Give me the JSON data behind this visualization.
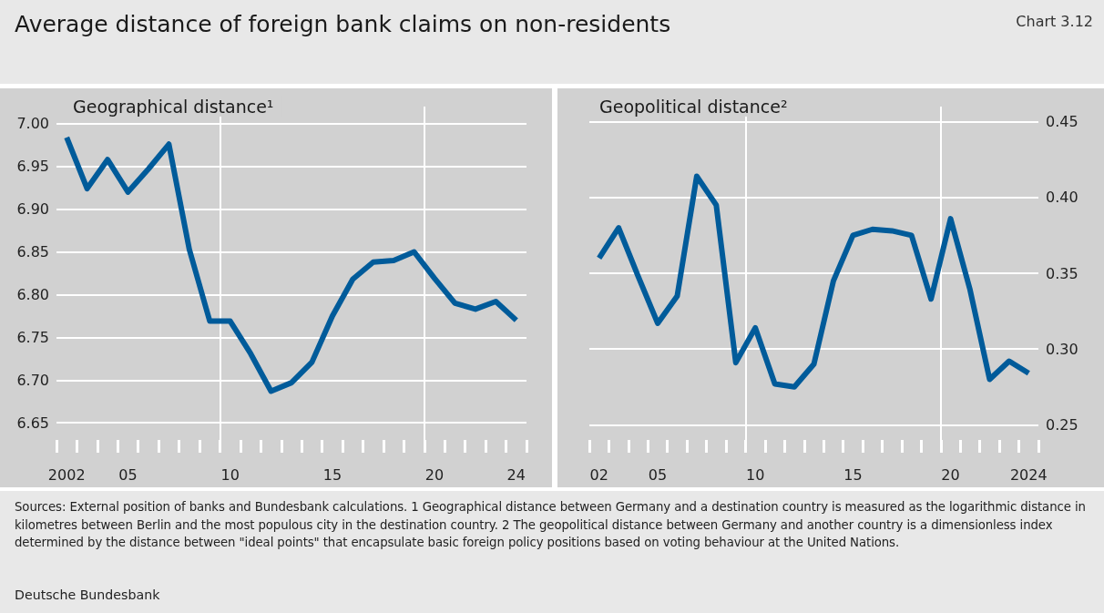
{
  "chart_data": [
    {
      "type": "other",
      "title": "Average distance of foreign bank claims on non-residents",
      "subtitle": "Chart 3.12",
      "annotations": [
        "Sources: External position of banks and Bundesbank calculations. 1 Geographical distance between Germany and a destination country is measured as the logarithmic distance in kilometres between Berlin and the most populous city in the destination country. 2 The geopolitical distance between Germany and another country is a dimensionless index determined by the distance between \"ideal points\" that encapsulate basic foreign policy positions based on voting behaviour at the United Nations.",
        "Deutsche Bundesbank"
      ]
    },
    {
      "type": "line",
      "title": "Geographical distance¹",
      "x": [
        2002,
        2003,
        2004,
        2005,
        2006,
        2007,
        2008,
        2009,
        2010,
        2011,
        2012,
        2013,
        2014,
        2015,
        2016,
        2017,
        2018,
        2019,
        2020,
        2021,
        2022,
        2023,
        2024
      ],
      "xlim": [
        2001.5,
        2024.5
      ],
      "xticks": [
        {
          "value": 2001.5,
          "label": null
        },
        {
          "value": 2002,
          "label": "2002"
        },
        {
          "value": 2002.5,
          "label": null
        },
        {
          "value": 2003.5,
          "label": null
        },
        {
          "value": 2004.5,
          "label": null
        },
        {
          "value": 2005,
          "label": "05"
        },
        {
          "value": 2005.5,
          "label": null
        },
        {
          "value": 2006.5,
          "label": null
        },
        {
          "value": 2007.5,
          "label": null
        },
        {
          "value": 2008.5,
          "label": null
        },
        {
          "value": 2009.5,
          "label": null
        },
        {
          "value": 2010,
          "label": "10"
        },
        {
          "value": 2010.5,
          "label": null
        },
        {
          "value": 2011.5,
          "label": null
        },
        {
          "value": 2012.5,
          "label": null
        },
        {
          "value": 2013.5,
          "label": null
        },
        {
          "value": 2014.5,
          "label": null
        },
        {
          "value": 2015,
          "label": "15"
        },
        {
          "value": 2015.5,
          "label": null
        },
        {
          "value": 2016.5,
          "label": null
        },
        {
          "value": 2017.5,
          "label": null
        },
        {
          "value": 2018.5,
          "label": null
        },
        {
          "value": 2019.5,
          "label": null
        },
        {
          "value": 2020,
          "label": "20"
        },
        {
          "value": 2020.5,
          "label": null
        },
        {
          "value": 2021.5,
          "label": null
        },
        {
          "value": 2022.5,
          "label": null
        },
        {
          "value": 2023.5,
          "label": null
        },
        {
          "value": 2024,
          "label": "24"
        },
        {
          "value": 2024.5,
          "label": null
        }
      ],
      "series": [
        {
          "color": "#005b9a",
          "values": [
            6.984,
            6.924,
            6.958,
            6.92,
            6.947,
            6.976,
            6.853,
            6.769,
            6.769,
            6.731,
            6.687,
            6.697,
            6.721,
            6.775,
            6.818,
            6.838,
            6.84,
            6.85,
            6.819,
            6.79,
            6.783,
            6.792,
            6.77
          ]
        }
      ],
      "ylim": [
        6.63,
        7.02
      ],
      "yticks": [
        6.65,
        {
          "value": 6.7,
          "label": "6.70"
        },
        6.75,
        {
          "value": 6.8,
          "label": "6.80"
        },
        6.85,
        {
          "value": 6.9,
          "label": "6.90"
        },
        6.95,
        {
          "value": 7,
          "label": "7.00"
        }
      ],
      "grid": "y",
      "ref_lines": [
        {
          "axis": "x",
          "value": 2009.5,
          "color": "#ffffff"
        },
        {
          "axis": "x",
          "value": 2019.5,
          "color": "#ffffff"
        }
      ]
    },
    {
      "type": "line",
      "title": "Geopolitical distance²",
      "x": [
        2002,
        2003,
        2004,
        2005,
        2006,
        2007,
        2008,
        2009,
        2010,
        2011,
        2012,
        2013,
        2014,
        2015,
        2016,
        2017,
        2018,
        2019,
        2020,
        2021,
        2022,
        2023,
        2024
      ],
      "xlim": [
        2001.5,
        2024.5
      ],
      "xticks": [
        {
          "value": 2001.5,
          "label": null
        },
        {
          "value": 2002,
          "label": "02"
        },
        {
          "value": 2002.5,
          "label": null
        },
        {
          "value": 2003.5,
          "label": null
        },
        {
          "value": 2004.5,
          "label": null
        },
        {
          "value": 2005,
          "label": "05"
        },
        {
          "value": 2005.5,
          "label": null
        },
        {
          "value": 2006.5,
          "label": null
        },
        {
          "value": 2007.5,
          "label": null
        },
        {
          "value": 2008.5,
          "label": null
        },
        {
          "value": 2009.5,
          "label": null
        },
        {
          "value": 2010,
          "label": "10"
        },
        {
          "value": 2010.5,
          "label": null
        },
        {
          "value": 2011.5,
          "label": null
        },
        {
          "value": 2012.5,
          "label": null
        },
        {
          "value": 2013.5,
          "label": null
        },
        {
          "value": 2014.5,
          "label": null
        },
        {
          "value": 2015,
          "label": "15"
        },
        {
          "value": 2015.5,
          "label": null
        },
        {
          "value": 2016.5,
          "label": null
        },
        {
          "value": 2017.5,
          "label": null
        },
        {
          "value": 2018.5,
          "label": null
        },
        {
          "value": 2019.5,
          "label": null
        },
        {
          "value": 2020,
          "label": "20"
        },
        {
          "value": 2020.5,
          "label": null
        },
        {
          "value": 2021.5,
          "label": null
        },
        {
          "value": 2022.5,
          "label": null
        },
        {
          "value": 2023.5,
          "label": null
        },
        {
          "value": 2024,
          "label": "2024"
        },
        {
          "value": 2024.5,
          "label": null
        }
      ],
      "series": [
        {
          "color": "#005b9a",
          "values": [
            0.36,
            0.38,
            0.348,
            0.317,
            0.335,
            0.414,
            0.395,
            0.291,
            0.314,
            0.277,
            0.275,
            0.29,
            0.345,
            0.375,
            0.379,
            0.378,
            0.375,
            0.333,
            0.386,
            0.339,
            0.28,
            0.292,
            0.284
          ]
        }
      ],
      "ylim": [
        0.24,
        0.46
      ],
      "yticks": [
        0.25,
        {
          "value": 0.3,
          "label": "0.30"
        },
        0.35,
        {
          "value": 0.4,
          "label": "0.40"
        },
        0.45
      ],
      "grid": "y",
      "ref_lines": [
        {
          "axis": "x",
          "value": 2009.5,
          "color": "#ffffff"
        },
        {
          "axis": "x",
          "value": 2019.5,
          "color": "#ffffff"
        }
      ]
    }
  ]
}
